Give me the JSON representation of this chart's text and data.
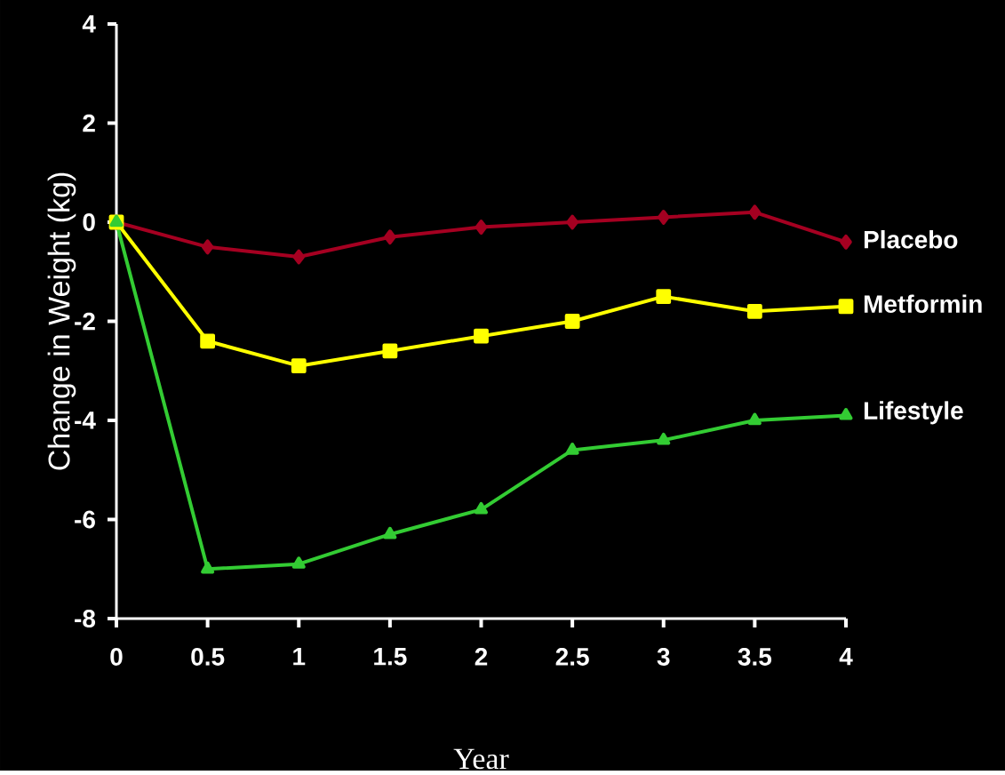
{
  "chart_data": {
    "type": "line",
    "xlabel": "Year",
    "ylabel": "Change in Weight (kg)",
    "x": [
      0,
      0.5,
      1,
      1.5,
      2,
      2.5,
      3,
      3.5,
      4
    ],
    "xlim": [
      0,
      4
    ],
    "xticks": [
      0,
      0.5,
      1,
      1.5,
      2,
      2.5,
      3,
      3.5,
      4
    ],
    "ylim": [
      -8,
      4
    ],
    "yticks": [
      -8,
      -6,
      -4,
      -2,
      0,
      2,
      4
    ],
    "grid": false,
    "legend": false,
    "series": [
      {
        "name": "Placebo",
        "color": "#a50021",
        "marker": "diamond",
        "values": [
          0,
          -0.5,
          -0.7,
          -0.3,
          -0.1,
          0,
          0.1,
          0.2,
          -0.4
        ]
      },
      {
        "name": "Metformin",
        "color": "#ffff00",
        "marker": "square",
        "values": [
          0,
          -2.4,
          -2.9,
          -2.6,
          -2.3,
          -2.0,
          -1.5,
          -1.8,
          -1.7
        ]
      },
      {
        "name": "Lifestyle",
        "color": "#33cc33",
        "marker": "triangle",
        "values": [
          0,
          -7.0,
          -6.9,
          -6.3,
          -5.8,
          -4.6,
          -4.4,
          -4.0,
          -3.9
        ]
      }
    ]
  }
}
